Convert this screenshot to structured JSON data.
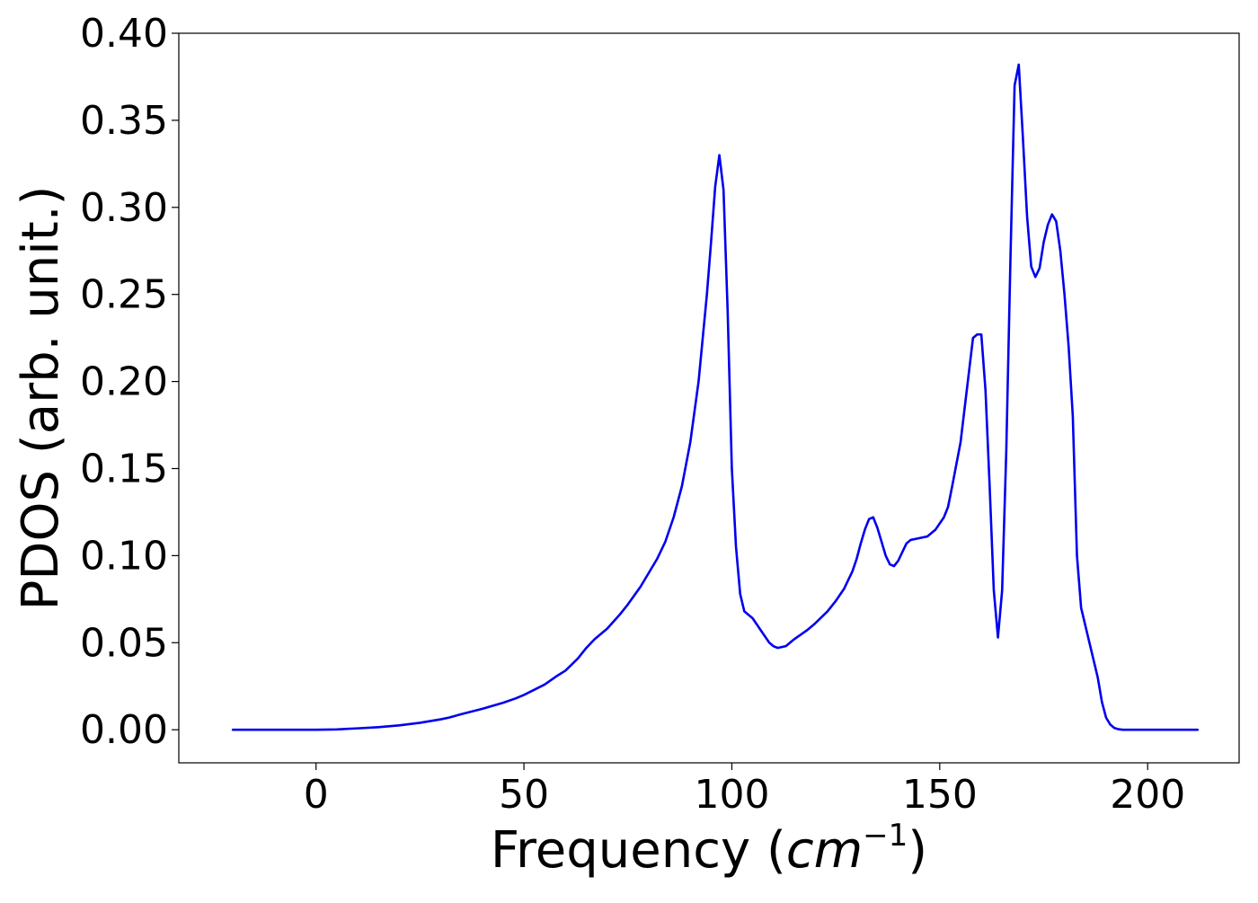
{
  "chart_data": {
    "type": "line",
    "xlabel": "Frequency",
    "xlabel_unit_base": "cm",
    "xlabel_unit_exp": "−1",
    "ylabel": "PDOS (arb. unit.)",
    "xlim": [
      -33,
      222
    ],
    "ylim": [
      -0.019,
      0.4
    ],
    "x_ticks": [
      "0",
      "50",
      "100",
      "150",
      "200"
    ],
    "x_tick_values": [
      0,
      50,
      100,
      150,
      200
    ],
    "y_ticks": [
      "0.00",
      "0.05",
      "0.10",
      "0.15",
      "0.20",
      "0.25",
      "0.30",
      "0.35",
      "0.40"
    ],
    "y_tick_values": [
      0.0,
      0.05,
      0.1,
      0.15,
      0.2,
      0.25,
      0.3,
      0.35,
      0.4
    ],
    "grid": false,
    "series": [
      {
        "color": "#0000ee",
        "x": [
          -20,
          -10,
          0,
          5,
          10,
          15,
          20,
          25,
          30,
          32,
          35,
          40,
          45,
          48,
          50,
          55,
          58,
          60,
          63,
          65,
          67,
          70,
          73,
          75,
          78,
          80,
          82,
          84,
          86,
          88,
          90,
          92,
          94,
          95,
          96,
          97,
          98,
          99,
          100,
          101,
          102,
          103,
          105,
          107,
          109,
          110,
          111,
          113,
          115,
          118,
          120,
          123,
          125,
          127,
          129,
          130,
          131,
          132,
          133,
          134,
          135,
          136,
          137,
          138,
          139,
          140,
          142,
          143,
          145,
          147,
          149,
          151,
          152,
          153,
          155,
          156,
          157,
          158,
          159,
          160,
          161,
          162,
          163,
          164,
          165,
          166,
          167,
          168,
          169,
          170,
          171,
          172,
          173,
          174,
          175,
          176,
          177,
          178,
          179,
          180,
          181,
          182,
          183,
          184,
          186,
          188,
          189,
          190,
          191,
          192,
          193,
          194,
          195,
          196,
          197,
          200,
          205,
          210,
          212
        ],
        "values": [
          0.0,
          0.0,
          0.0,
          0.0002,
          0.0008,
          0.0015,
          0.0025,
          0.004,
          0.006,
          0.007,
          0.009,
          0.012,
          0.0155,
          0.018,
          0.02,
          0.026,
          0.031,
          0.034,
          0.041,
          0.047,
          0.052,
          0.058,
          0.066,
          0.072,
          0.082,
          0.09,
          0.098,
          0.108,
          0.122,
          0.14,
          0.165,
          0.2,
          0.25,
          0.28,
          0.312,
          0.33,
          0.31,
          0.24,
          0.15,
          0.105,
          0.078,
          0.068,
          0.064,
          0.057,
          0.05,
          0.048,
          0.047,
          0.048,
          0.052,
          0.057,
          0.061,
          0.068,
          0.074,
          0.081,
          0.091,
          0.098,
          0.107,
          0.115,
          0.121,
          0.122,
          0.116,
          0.108,
          0.1,
          0.095,
          0.094,
          0.097,
          0.107,
          0.109,
          0.11,
          0.111,
          0.115,
          0.122,
          0.128,
          0.14,
          0.165,
          0.185,
          0.205,
          0.225,
          0.227,
          0.227,
          0.195,
          0.14,
          0.08,
          0.053,
          0.08,
          0.16,
          0.27,
          0.37,
          0.382,
          0.34,
          0.295,
          0.266,
          0.26,
          0.265,
          0.28,
          0.29,
          0.296,
          0.292,
          0.275,
          0.25,
          0.22,
          0.18,
          0.1,
          0.07,
          0.05,
          0.03,
          0.016,
          0.007,
          0.003,
          0.001,
          0.0003,
          0.0,
          0.0,
          0.0,
          0.0,
          0.0,
          0.0,
          0.0,
          0.0
        ]
      }
    ]
  }
}
